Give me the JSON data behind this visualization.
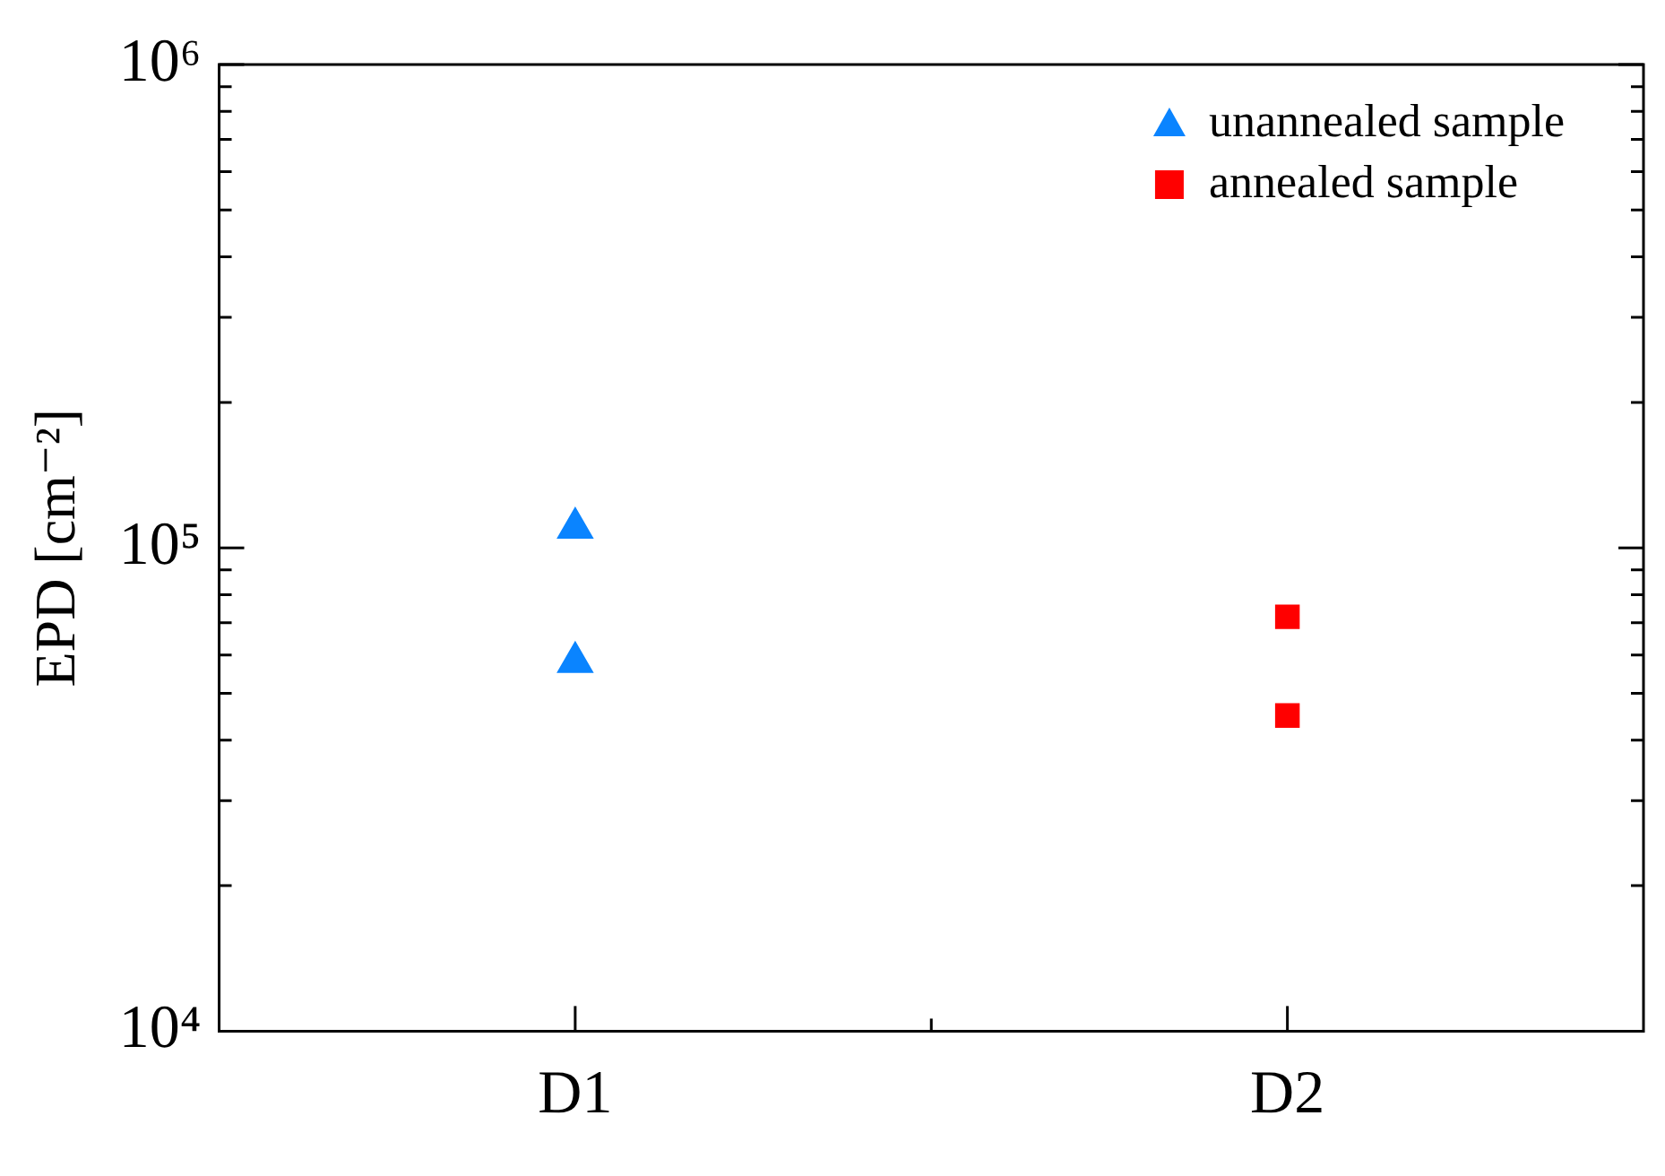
{
  "chart_data": {
    "type": "scatter",
    "ylabel": "EPD [cm⁻²]",
    "categories": [
      "D1",
      "D2"
    ],
    "series": [
      {
        "name": "unannealed sample",
        "color": "#0a84ff",
        "marker": "triangle",
        "x": [
          "D1",
          "D1"
        ],
        "values": [
          110000,
          58000
        ]
      },
      {
        "name": "annealed sample",
        "color": "#ff0000",
        "marker": "square",
        "x": [
          "D2",
          "D2"
        ],
        "values": [
          72000,
          45000
        ]
      }
    ],
    "log": "y",
    "ylim": [
      10000,
      1000000
    ],
    "yticks": [
      {
        "value": 10000,
        "label": "10⁴"
      },
      {
        "value": 20000,
        "label": null
      },
      {
        "value": 30000,
        "label": null
      },
      {
        "value": 40000,
        "label": null
      },
      {
        "value": 50000,
        "label": null
      },
      {
        "value": 60000,
        "label": null
      },
      {
        "value": 70000,
        "label": null
      },
      {
        "value": 80000,
        "label": null
      },
      {
        "value": 90000,
        "label": null
      },
      {
        "value": 100000,
        "label": "10⁵"
      },
      {
        "value": 200000,
        "label": null
      },
      {
        "value": 300000,
        "label": null
      },
      {
        "value": 400000,
        "label": null
      },
      {
        "value": 500000,
        "label": null
      },
      {
        "value": 600000,
        "label": null
      },
      {
        "value": 700000,
        "label": null
      },
      {
        "value": 800000,
        "label": null
      },
      {
        "value": 900000,
        "label": null
      },
      {
        "value": 1000000,
        "label": "10⁶"
      }
    ],
    "grid": false,
    "legend": "top right"
  }
}
